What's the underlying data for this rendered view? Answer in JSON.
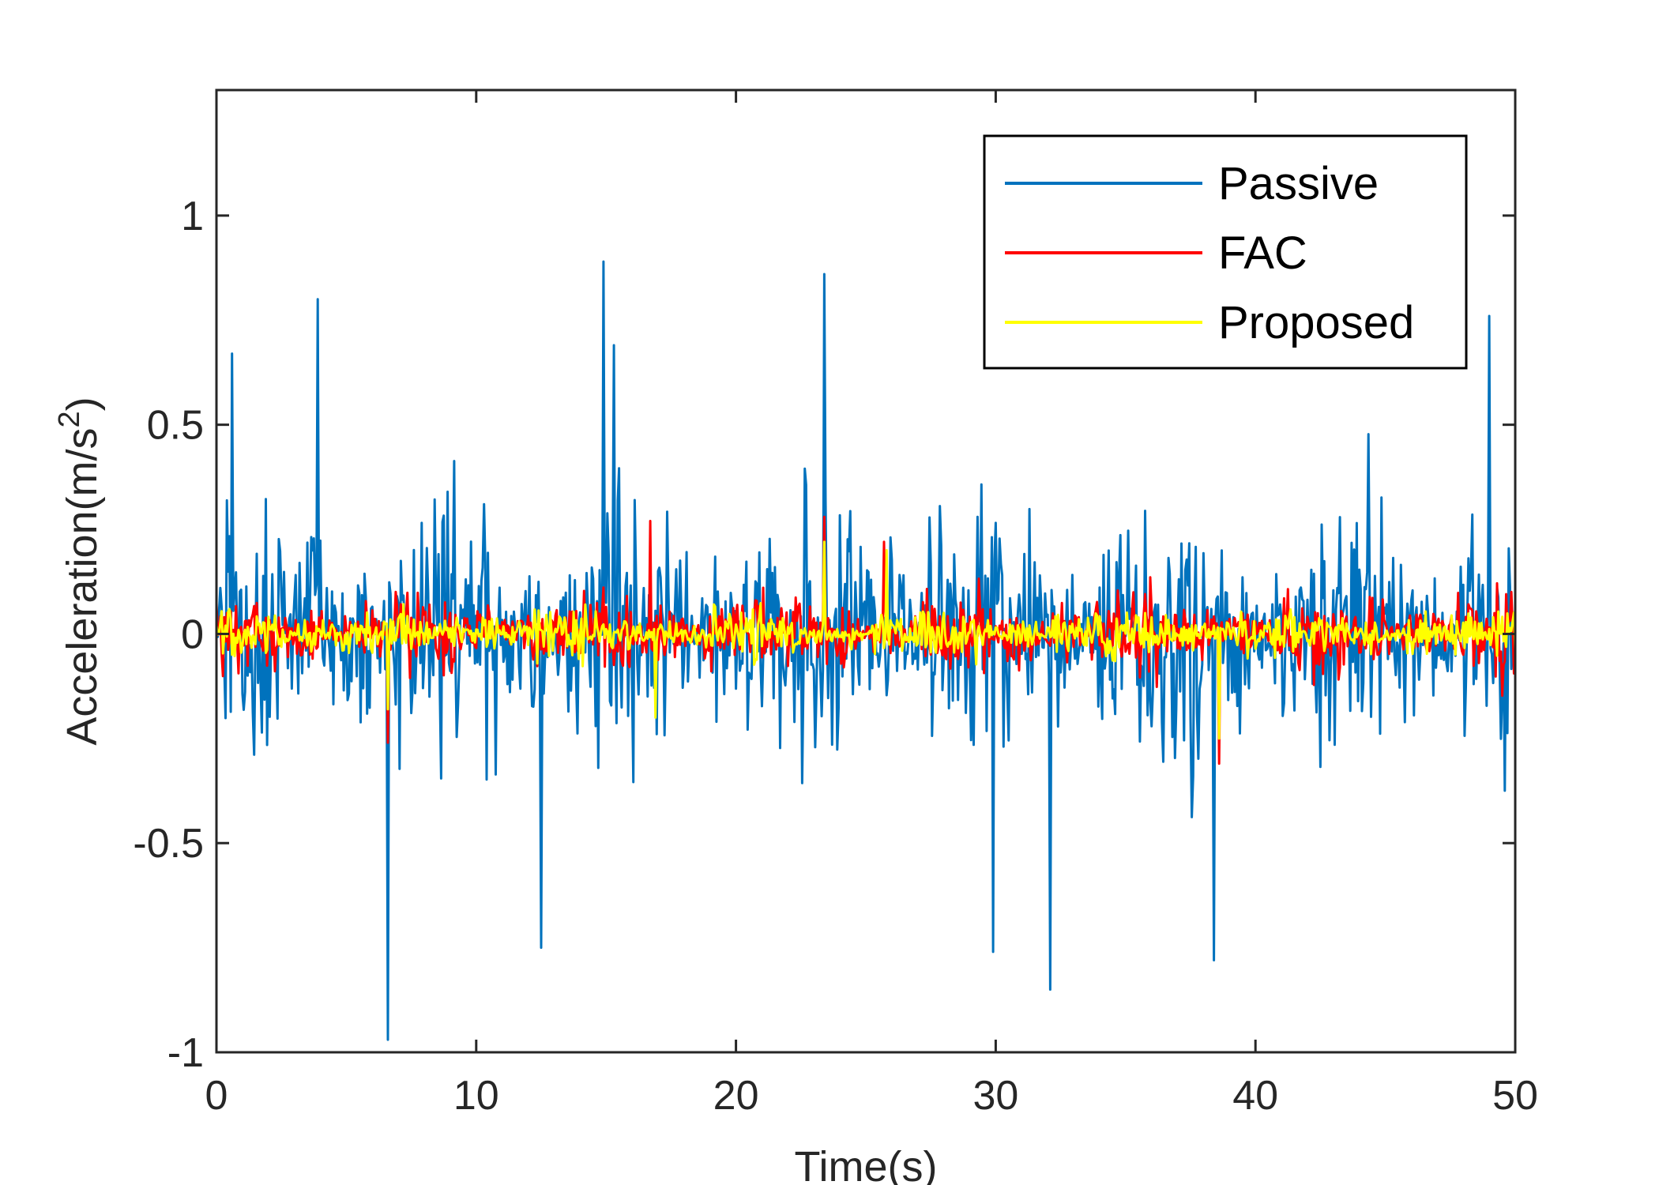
{
  "chart_data": {
    "type": "line",
    "title": "",
    "xlabel": "Time(s)",
    "ylabel_main": "Acceleration(m/s",
    "ylabel_sup": "2",
    "ylabel_close": ")",
    "xlim": [
      0,
      50
    ],
    "ylim": [
      -1,
      1.3
    ],
    "xticks": [
      0,
      10,
      20,
      30,
      40,
      50
    ],
    "xtick_labels": [
      "0",
      "10",
      "20",
      "30",
      "40",
      "50"
    ],
    "yticks": [
      -1,
      -0.5,
      0,
      0.5,
      1
    ],
    "ytick_labels": [
      "-1",
      "-0.5",
      "0",
      "0.5",
      "1"
    ],
    "grid": false,
    "legend_position": "top-right",
    "sample_step": 0.05,
    "series": [
      {
        "name": "Passive",
        "color": "#0072BD",
        "noise_amplitude": 0.3,
        "peaks": [
          [
            0.6,
            0.67
          ],
          [
            3.9,
            0.8
          ],
          [
            6.6,
            -0.97
          ],
          [
            14.9,
            0.89
          ],
          [
            15.3,
            0.69
          ],
          [
            12.5,
            -0.75
          ],
          [
            23.4,
            0.86
          ],
          [
            29.9,
            -0.76
          ],
          [
            32.1,
            -0.85
          ],
          [
            38.4,
            -0.78
          ],
          [
            49.0,
            0.76
          ]
        ]
      },
      {
        "name": "FAC",
        "color": "#FF0000",
        "noise_amplitude": 0.09,
        "peaks": [
          [
            16.7,
            0.27
          ],
          [
            23.4,
            0.28
          ],
          [
            6.6,
            -0.26
          ],
          [
            38.6,
            -0.31
          ],
          [
            25.7,
            0.22
          ]
        ]
      },
      {
        "name": "Proposed",
        "color": "#FFFF00",
        "noise_amplitude": 0.055,
        "peaks": [
          [
            16.9,
            -0.2
          ],
          [
            23.4,
            0.22
          ],
          [
            38.6,
            -0.25
          ],
          [
            6.6,
            -0.18
          ],
          [
            25.8,
            0.2
          ]
        ]
      }
    ]
  }
}
